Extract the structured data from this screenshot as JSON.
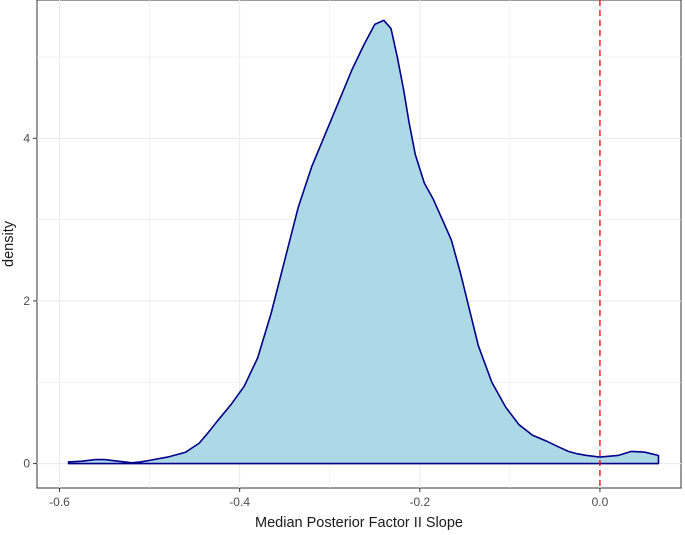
{
  "chart_data": {
    "type": "area",
    "title": "",
    "xlabel": "Median Posterior Factor II Slope",
    "ylabel": "density",
    "xlim": [
      -0.625,
      0.09
    ],
    "ylim": [
      -0.3,
      5.7
    ],
    "x_ticks": [
      -0.6,
      -0.4,
      -0.2,
      0.0
    ],
    "x_tick_labels": [
      "-0.6",
      "-0.4",
      "-0.2",
      "0.0"
    ],
    "y_ticks": [
      0,
      2,
      4
    ],
    "y_tick_labels": [
      "0",
      "2",
      "4"
    ],
    "x_minor": [
      -0.5,
      -0.3,
      -0.1
    ],
    "y_minor": [
      1,
      3,
      5
    ],
    "grid": true,
    "reference_line": {
      "x": 0.0,
      "style": "dashed",
      "color": "#ff0000"
    },
    "colors": {
      "fill": "#add8e6",
      "outline": "#00008b",
      "grid": "#ebebeb",
      "reference": "#ff0000"
    },
    "series": [
      {
        "x": [
          -0.59,
          -0.575,
          -0.56,
          -0.55,
          -0.535,
          -0.52,
          -0.51,
          -0.5,
          -0.48,
          -0.46,
          -0.445,
          -0.435,
          -0.425,
          -0.41,
          -0.395,
          -0.38,
          -0.365,
          -0.35,
          -0.335,
          -0.32,
          -0.305,
          -0.29,
          -0.275,
          -0.262,
          -0.25,
          -0.24,
          -0.232,
          -0.225,
          -0.218,
          -0.212,
          -0.205,
          -0.195,
          -0.185,
          -0.175,
          -0.165,
          -0.155,
          -0.145,
          -0.135,
          -0.12,
          -0.105,
          -0.09,
          -0.075,
          -0.06,
          -0.045,
          -0.035,
          -0.025,
          -0.015,
          0.0,
          0.02,
          0.035,
          0.05,
          0.065
        ],
        "y": [
          0.02,
          0.03,
          0.05,
          0.05,
          0.03,
          0.01,
          0.02,
          0.04,
          0.08,
          0.14,
          0.25,
          0.38,
          0.52,
          0.72,
          0.95,
          1.3,
          1.85,
          2.5,
          3.15,
          3.65,
          4.05,
          4.45,
          4.85,
          5.15,
          5.4,
          5.45,
          5.35,
          5.0,
          4.6,
          4.2,
          3.8,
          3.45,
          3.25,
          3.0,
          2.75,
          2.35,
          1.9,
          1.45,
          1.0,
          0.7,
          0.48,
          0.35,
          0.28,
          0.2,
          0.15,
          0.12,
          0.1,
          0.08,
          0.1,
          0.15,
          0.14,
          0.1
        ]
      }
    ]
  }
}
